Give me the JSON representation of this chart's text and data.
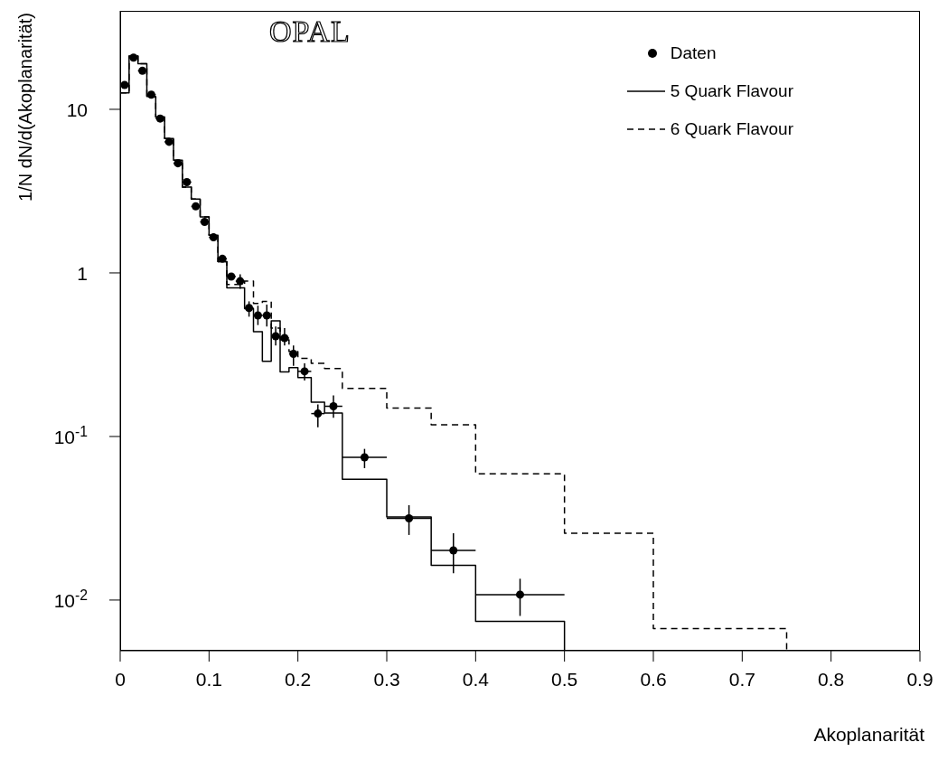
{
  "chart_data": {
    "type": "histogram",
    "xlabel": "Akoplanarität",
    "ylabel": "1/N dN/d(Akoplanarität)",
    "annotations": [
      "OPAL"
    ],
    "bins": [
      0,
      0.01,
      0.02,
      0.03,
      0.04,
      0.05,
      0.06,
      0.07,
      0.08,
      0.09,
      0.1,
      0.11,
      0.12,
      0.13,
      0.14,
      0.15,
      0.16,
      0.17,
      0.18,
      0.19,
      0.2,
      0.215,
      0.23,
      0.25,
      0.3,
      0.35,
      0.4,
      0.5,
      0.6,
      0.75
    ],
    "xlim": [
      0,
      0.9
    ],
    "xticks": [
      0,
      0.1,
      0.2,
      0.3,
      0.4,
      0.5,
      0.6,
      0.7,
      0.8,
      0.9
    ],
    "ylim": [
      0.0049,
      40
    ],
    "yticks": [
      {
        "value": 0.01,
        "label": "10$^{-2}$"
      },
      {
        "value": 0.1,
        "label": "10$^{-1}$"
      },
      1,
      10
    ],
    "log": "y",
    "legend": "top right",
    "series": [
      {
        "name": "Daten",
        "type": "scatter",
        "color": "#000000",
        "marker": "circle",
        "x": [
          0.005,
          0.015,
          0.025,
          0.035,
          0.045,
          0.055,
          0.065,
          0.075,
          0.085,
          0.095,
          0.105,
          0.115,
          0.125,
          0.135,
          0.145,
          0.155,
          0.165,
          0.175,
          0.185,
          0.195,
          0.2075,
          0.2225,
          0.24,
          0.275,
          0.325,
          0.375,
          0.45
        ],
        "values": [
          14.1,
          20.7,
          17.2,
          12.3,
          8.78,
          6.33,
          4.68,
          3.59,
          2.55,
          2.05,
          1.65,
          1.22,
          0.95,
          0.89,
          0.61,
          0.55,
          0.55,
          0.41,
          0.4,
          0.32,
          0.25,
          0.138,
          0.153,
          0.0746,
          0.0316,
          0.0201,
          0.0108
        ],
        "errors": [
          null,
          null,
          null,
          null,
          null,
          null,
          null,
          null,
          null,
          null,
          null,
          null,
          null,
          [
            0.8,
            0.98
          ],
          [
            0.54,
            0.67
          ],
          [
            0.48,
            0.63
          ],
          [
            0.47,
            0.64
          ],
          [
            0.36,
            0.47
          ],
          [
            0.36,
            0.46
          ],
          [
            0.27,
            0.36
          ],
          [
            0.22,
            0.28
          ],
          [
            0.114,
            0.157
          ],
          [
            0.13,
            0.178
          ],
          [
            0.064,
            0.084
          ],
          [
            0.025,
            0.038
          ],
          [
            0.0146,
            0.0256
          ],
          [
            0.008,
            0.0135
          ]
        ],
        "xerrors": [
          null,
          0.005,
          0.005,
          0.005,
          0.005,
          0.005,
          0.005,
          0.005,
          0.005,
          0.005,
          0.005,
          0.005,
          0.005,
          0.005,
          0.005,
          0.005,
          0.005,
          0.005,
          0.005,
          0.005,
          0.0075,
          0.0075,
          0.01,
          0.025,
          0.025,
          0.025,
          0.05
        ]
      },
      {
        "name": "5 Quark Flavour",
        "color": "#000000",
        "line_style": "solid",
        "bins": [
          0,
          0.01,
          0.02,
          0.03,
          0.04,
          0.05,
          0.06,
          0.07,
          0.08,
          0.09,
          0.1,
          0.11,
          0.12,
          0.13,
          0.14,
          0.15,
          0.16,
          0.17,
          0.18,
          0.19,
          0.2,
          0.215,
          0.23,
          0.25,
          0.3,
          0.35,
          0.4,
          0.5
        ],
        "values": [
          12.6,
          21.2,
          19.0,
          12.0,
          8.96,
          6.63,
          4.88,
          3.35,
          2.83,
          2.2,
          1.7,
          1.17,
          0.81,
          0.81,
          0.605,
          0.437,
          0.288,
          0.51,
          0.248,
          0.264,
          0.229,
          0.162,
          0.139,
          0.0548,
          0.0322,
          0.0163,
          0.0074
        ]
      },
      {
        "name": "6 Quark Flavour",
        "color": "#000000",
        "line_style": "dashed",
        "values": [
          12.6,
          21.2,
          19.0,
          12.0,
          8.96,
          6.63,
          4.88,
          3.35,
          2.83,
          2.2,
          1.7,
          1.17,
          0.85,
          0.85,
          0.89,
          0.65,
          0.67,
          0.46,
          0.39,
          0.33,
          0.3,
          0.28,
          0.26,
          0.197,
          0.149,
          0.118,
          0.0591,
          0.0256,
          0.0067
        ]
      }
    ]
  }
}
